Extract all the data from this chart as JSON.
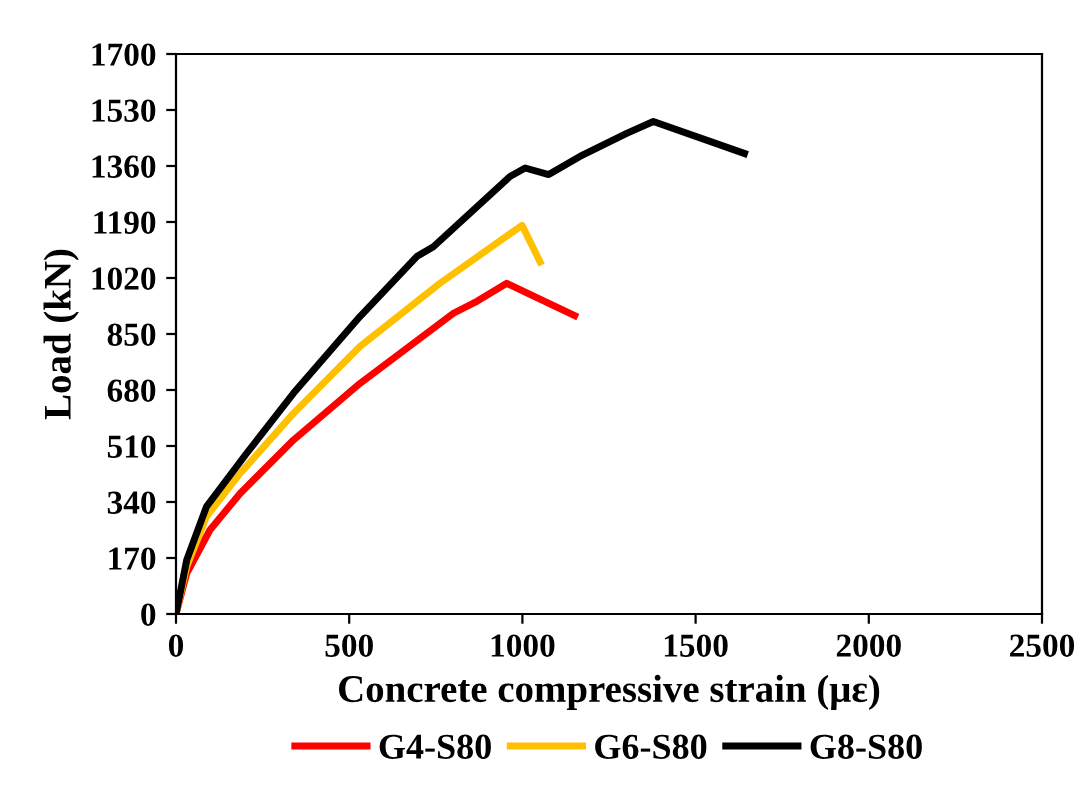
{
  "chart_data": {
    "type": "line",
    "xlabel": "Concrete compressive strain (με)",
    "ylabel": "Load (kN)",
    "xlim": [
      0,
      2500
    ],
    "xticks": [
      0,
      500,
      1000,
      1500,
      2000,
      2500
    ],
    "ylim": [
      0,
      1700
    ],
    "yticks": [
      0,
      170,
      340,
      510,
      680,
      850,
      1020,
      1190,
      1360,
      1530,
      1700
    ],
    "legend": "bottom",
    "grid": false,
    "marker": "none",
    "line_style": "solid",
    "series": [
      {
        "name": "G4-S80",
        "color": "#ff0000",
        "x": [
          0,
          31,
          98,
          185,
          339,
          531,
          801,
          870,
          955,
          1151
        ],
        "values": [
          0,
          123,
          255,
          366,
          528,
          700,
          913,
          950,
          1004,
          906
        ]
      },
      {
        "name": "G6-S80",
        "color": "#ffc000",
        "x": [
          0,
          31,
          88,
          185,
          339,
          531,
          762,
          999,
          1051
        ],
        "values": [
          0,
          144,
          296,
          427,
          609,
          812,
          1004,
          1180,
          1069
        ]
      },
      {
        "name": "G8-S80",
        "color": "#000000",
        "x": [
          0,
          31,
          88,
          204,
          339,
          531,
          695,
          743,
          964,
          1008,
          1076,
          1166,
          1301,
          1378,
          1641
        ],
        "values": [
          0,
          164,
          326,
          488,
          670,
          903,
          1085,
          1115,
          1328,
          1354,
          1334,
          1389,
          1459,
          1495,
          1398
        ]
      }
    ]
  }
}
